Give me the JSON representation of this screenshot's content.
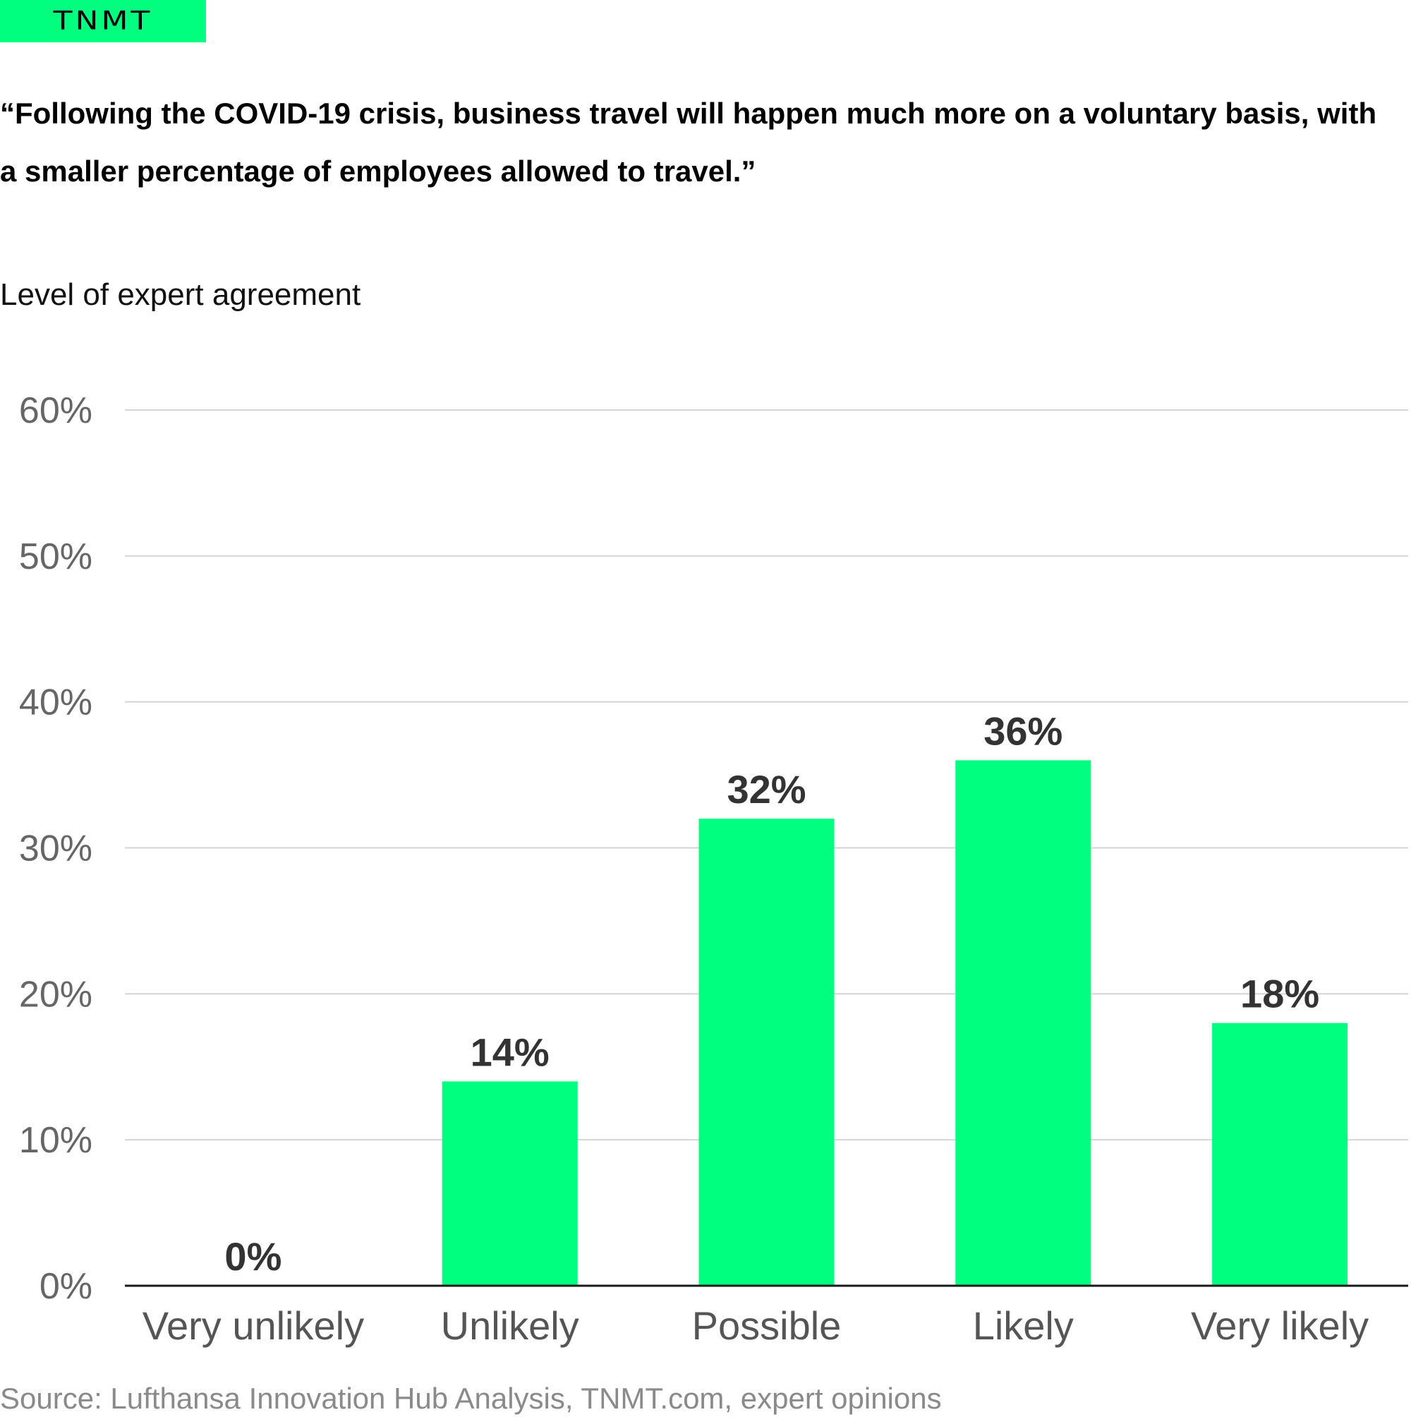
{
  "brand": {
    "logo_text": "TNMT",
    "accent_color": "#00ff7f"
  },
  "chart_data": {
    "type": "bar",
    "title": "“Following the COVID-19 crisis, business travel will happen much more on a voluntary basis, with a smaller percentage of employees allowed to travel.”",
    "subtitle": "Level of expert agreement",
    "categories": [
      "Very unlikely",
      "Unlikely",
      "Possible",
      "Likely",
      "Very likely"
    ],
    "values": [
      0,
      14,
      32,
      36,
      18
    ],
    "value_labels": [
      "0%",
      "14%",
      "32%",
      "36%",
      "18%"
    ],
    "ylim": [
      0,
      60
    ],
    "yticks": [
      0,
      10,
      20,
      30,
      40,
      50,
      60
    ],
    "ytick_labels": [
      "0%",
      "10%",
      "20%",
      "30%",
      "40%",
      "50%",
      "60%"
    ],
    "grid": true,
    "bar_color": "#00ff7f",
    "source": "Source: Lufthansa Innovation Hub Analysis, TNMT.com, expert opinions"
  }
}
